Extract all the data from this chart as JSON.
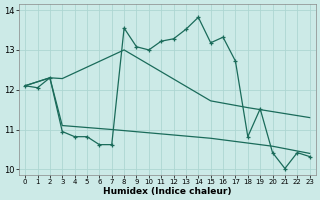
{
  "xlabel": "Humidex (Indice chaleur)",
  "bg_color": "#cceae7",
  "grid_color": "#add6d2",
  "line_color": "#1a6b5a",
  "xlim": [
    -0.5,
    23.5
  ],
  "ylim": [
    9.85,
    14.15
  ],
  "yticks": [
    10,
    11,
    12,
    13,
    14
  ],
  "xticks": [
    0,
    1,
    2,
    3,
    4,
    5,
    6,
    7,
    8,
    9,
    10,
    11,
    12,
    13,
    14,
    15,
    16,
    17,
    18,
    19,
    20,
    21,
    22,
    23
  ],
  "main_line_x": [
    0,
    1,
    2,
    3,
    4,
    5,
    6,
    7,
    8,
    9,
    10,
    11,
    12,
    13,
    14,
    15,
    16,
    17,
    18,
    19,
    20,
    21,
    22,
    23
  ],
  "main_line_y": [
    12.1,
    12.05,
    12.3,
    10.95,
    10.82,
    10.82,
    10.62,
    10.62,
    13.55,
    13.08,
    13.0,
    13.22,
    13.28,
    13.52,
    13.82,
    13.18,
    13.32,
    12.72,
    10.82,
    11.52,
    10.42,
    10.02,
    10.42,
    10.32
  ],
  "upper_line_x": [
    0,
    2,
    3,
    8,
    15,
    18,
    23
  ],
  "upper_line_y": [
    12.1,
    12.3,
    12.28,
    13.0,
    11.72,
    11.55,
    11.3
  ],
  "lower_line_x": [
    0,
    2,
    3,
    7,
    15,
    20,
    23
  ],
  "lower_line_y": [
    12.1,
    12.3,
    11.1,
    11.0,
    10.78,
    10.58,
    10.4
  ],
  "marker_x": [
    0,
    2,
    3,
    7,
    8,
    9,
    10,
    11,
    12,
    13,
    14,
    15,
    16,
    17,
    18,
    19,
    20,
    21,
    22,
    23
  ],
  "marker_y": [
    12.1,
    12.3,
    10.95,
    10.62,
    13.55,
    13.08,
    13.0,
    13.22,
    13.28,
    13.52,
    13.82,
    13.18,
    13.32,
    12.72,
    10.82,
    11.52,
    10.42,
    10.02,
    10.42,
    10.32
  ]
}
